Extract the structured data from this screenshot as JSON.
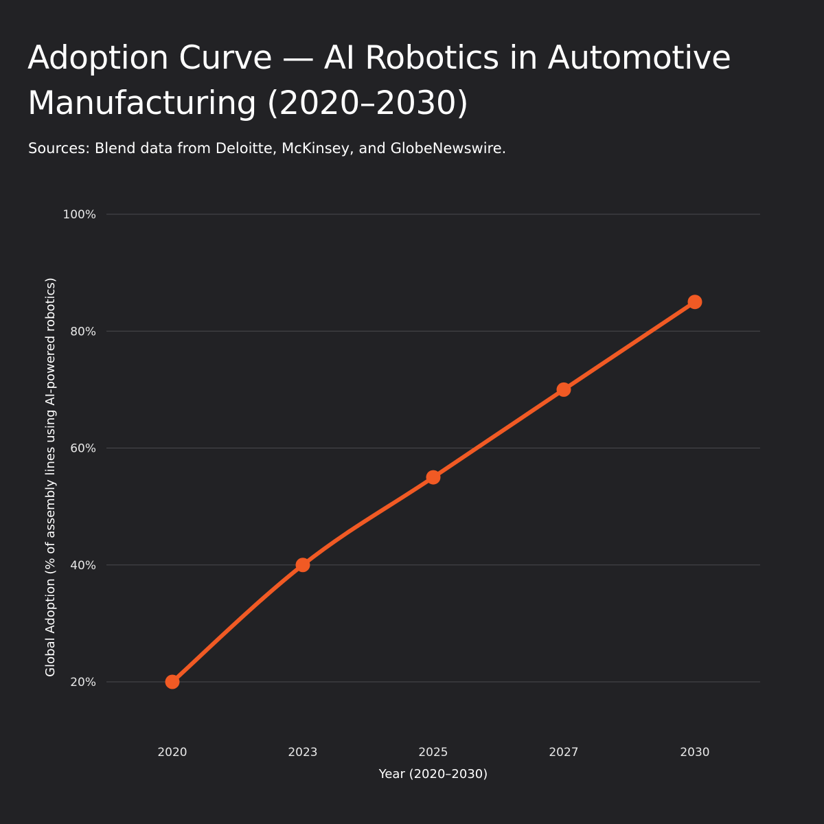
{
  "title": "Adoption Curve — AI Robotics in Automotive Manufacturing (2020–2030)",
  "subtitle": "Sources: Blend data from Deloitte, McKinsey, and GlobeNewswire.",
  "colors": {
    "background": "#222225",
    "line": "#f15a24",
    "grid": "#4a4a4e"
  },
  "chart_data": {
    "type": "line",
    "categories": [
      "2020",
      "2023",
      "2025",
      "2027",
      "2030"
    ],
    "series": [
      {
        "values": [
          20,
          40,
          55,
          70,
          85
        ]
      }
    ],
    "xlabel": "Year (2020–2030)",
    "ylabel": "Global Adoption (% of assembly lines using AI-powered robotics)",
    "yticks": [
      "20%",
      "40%",
      "60%",
      "80%",
      "100%"
    ],
    "ytick_values": [
      20,
      40,
      60,
      80,
      100
    ],
    "ylim": [
      20,
      100
    ],
    "grid": true,
    "legend": "none"
  }
}
